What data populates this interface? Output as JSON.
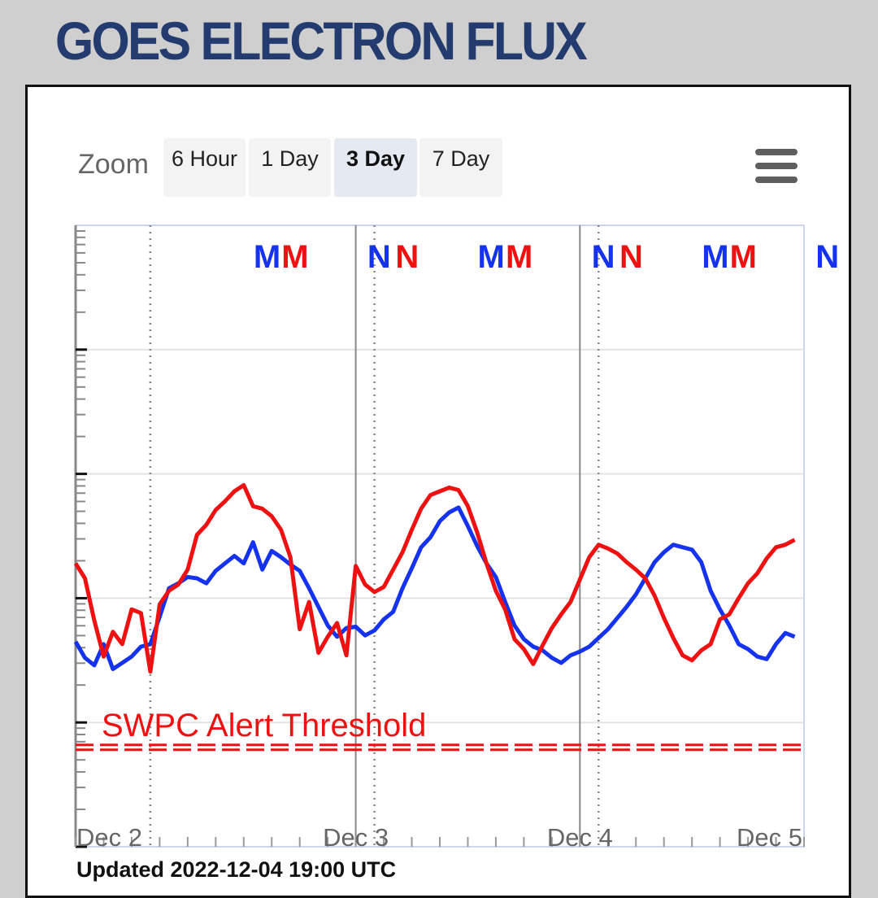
{
  "title": "GOES ELECTRON FLUX",
  "zoom": {
    "label": "Zoom",
    "buttons": [
      {
        "label": "6 Hour",
        "active": false
      },
      {
        "label": "1 Day",
        "active": false
      },
      {
        "label": "3 Day",
        "active": true
      },
      {
        "label": "7 Day",
        "active": false
      }
    ]
  },
  "updated": "Updated 2022-12-04 19:00 UTC",
  "chart_data": {
    "type": "line",
    "title": "",
    "xlabel": "",
    "ylabel": "",
    "x_ticks": [
      "Dec 2",
      "Dec 3",
      "Dec 4",
      "Dec 5"
    ],
    "xlim": [
      "2022-12-01T18:00",
      "2022-12-05T00:00"
    ],
    "y_scale": "log",
    "ylim_log10": [
      0,
      5
    ],
    "grid": true,
    "threshold": {
      "label": "SWPC Alert Threshold",
      "value_log10": 0.8,
      "color": "#ee1111"
    },
    "markers": [
      {
        "text": "M",
        "hours": 20.5,
        "color": "#1533ee"
      },
      {
        "text": "M",
        "hours": 23.5,
        "color": "#ee1111"
      },
      {
        "text": "N",
        "hours": 32.5,
        "color": "#1533ee"
      },
      {
        "text": "N",
        "hours": 35.5,
        "color": "#ee1111"
      },
      {
        "text": "M",
        "hours": 44.5,
        "color": "#1533ee"
      },
      {
        "text": "M",
        "hours": 47.5,
        "color": "#ee1111"
      },
      {
        "text": "N",
        "hours": 56.5,
        "color": "#1533ee"
      },
      {
        "text": "N",
        "hours": 59.5,
        "color": "#ee1111"
      },
      {
        "text": "M",
        "hours": 68.5,
        "color": "#1533ee"
      },
      {
        "text": "M",
        "hours": 71.5,
        "color": "#ee1111"
      },
      {
        "text": "N",
        "hours": 80.5,
        "color": "#1533ee"
      }
    ],
    "series": [
      {
        "color": "#1533ee",
        "x_hours": [
          0,
          1,
          2,
          3,
          4,
          5,
          6,
          7,
          8,
          9,
          10,
          11,
          12,
          13,
          14,
          15,
          16,
          17,
          18,
          19,
          20,
          21,
          22,
          23,
          24,
          25,
          26,
          27,
          28,
          29,
          30,
          31,
          32,
          33,
          34,
          35,
          36,
          37,
          38,
          39,
          40,
          41,
          42,
          43,
          44,
          45,
          46,
          47,
          48,
          49,
          50,
          51,
          52,
          53,
          54,
          55,
          56,
          57,
          58,
          59,
          60,
          61,
          62,
          63,
          64,
          65,
          66,
          67,
          68,
          69,
          70,
          71,
          72,
          73,
          74,
          75,
          76,
          77
        ],
        "y_log10": [
          1.65,
          1.52,
          1.46,
          1.63,
          1.43,
          1.48,
          1.53,
          1.61,
          1.63,
          1.85,
          2.08,
          2.12,
          2.17,
          2.16,
          2.12,
          2.22,
          2.28,
          2.34,
          2.28,
          2.45,
          2.23,
          2.38,
          2.33,
          2.27,
          2.22,
          2.08,
          1.93,
          1.78,
          1.69,
          1.76,
          1.77,
          1.7,
          1.74,
          1.83,
          1.89,
          2.08,
          2.24,
          2.41,
          2.49,
          2.62,
          2.69,
          2.73,
          2.58,
          2.42,
          2.28,
          2.17,
          1.97,
          1.78,
          1.67,
          1.61,
          1.58,
          1.52,
          1.48,
          1.54,
          1.57,
          1.61,
          1.68,
          1.75,
          1.84,
          1.93,
          2.03,
          2.16,
          2.29,
          2.37,
          2.43,
          2.41,
          2.39,
          2.29,
          2.06,
          1.91,
          1.78,
          1.63,
          1.59,
          1.53,
          1.51,
          1.63,
          1.72,
          1.69
        ]
      },
      {
        "color": "#ee1111",
        "x_hours": [
          0,
          1,
          2,
          3,
          4,
          5,
          6,
          7,
          8,
          9,
          10,
          11,
          12,
          13,
          14,
          15,
          16,
          17,
          18,
          19,
          20,
          21,
          22,
          23,
          24,
          25,
          26,
          27,
          28,
          29,
          30,
          31,
          32,
          33,
          34,
          35,
          36,
          37,
          38,
          39,
          40,
          41,
          42,
          43,
          44,
          45,
          46,
          47,
          48,
          49,
          50,
          51,
          52,
          53,
          54,
          55,
          56,
          57,
          58,
          59,
          60,
          61,
          62,
          63,
          64,
          65,
          66,
          67,
          68,
          69,
          70,
          71,
          72,
          73,
          74,
          75,
          76,
          77
        ],
        "y_log10": [
          2.28,
          2.16,
          1.82,
          1.53,
          1.73,
          1.63,
          1.91,
          1.88,
          1.41,
          1.95,
          2.06,
          2.11,
          2.23,
          2.51,
          2.59,
          2.71,
          2.78,
          2.86,
          2.91,
          2.74,
          2.72,
          2.66,
          2.55,
          2.33,
          1.75,
          1.97,
          1.56,
          1.69,
          1.8,
          1.54,
          2.26,
          2.11,
          2.05,
          2.09,
          2.23,
          2.37,
          2.55,
          2.72,
          2.83,
          2.86,
          2.89,
          2.87,
          2.74,
          2.53,
          2.28,
          2.06,
          1.91,
          1.67,
          1.59,
          1.47,
          1.62,
          1.76,
          1.87,
          1.97,
          2.15,
          2.33,
          2.43,
          2.4,
          2.36,
          2.29,
          2.23,
          2.16,
          2.02,
          1.84,
          1.68,
          1.54,
          1.5,
          1.58,
          1.63,
          1.83,
          1.87,
          2.0,
          2.12,
          2.2,
          2.32,
          2.41,
          2.43,
          2.47
        ]
      }
    ]
  }
}
